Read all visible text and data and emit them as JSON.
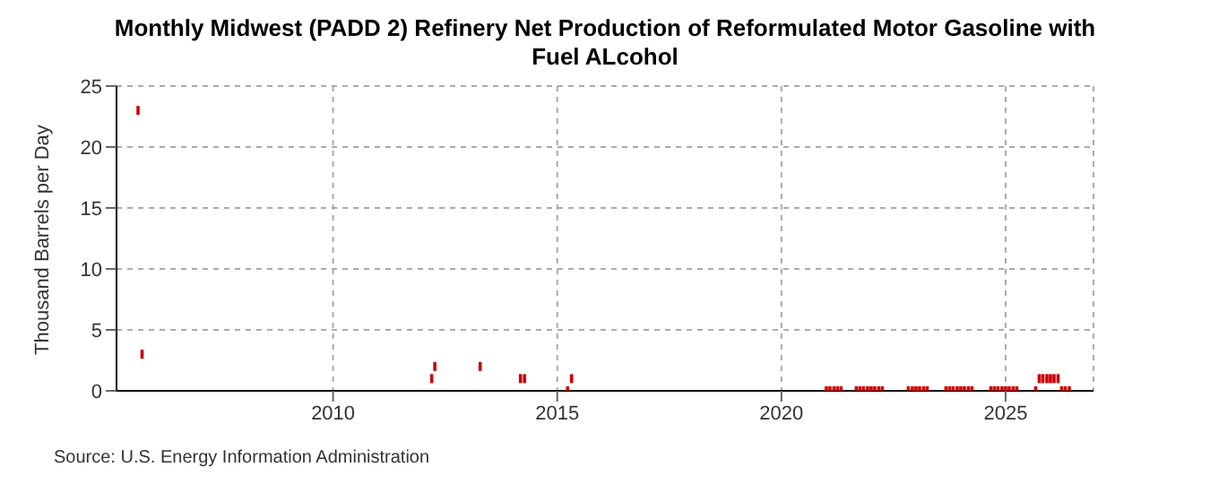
{
  "chart_data": {
    "type": "scatter",
    "title": "Monthly Midwest (PADD 2) Refinery Net Production of Reformulated Motor Gasoline with Fuel ALcohol",
    "ylabel": "Thousand Barrels per Day",
    "annotations": [
      "Source: U.S. Energy Information Administration"
    ],
    "x": [
      2005.65,
      2005.74,
      2012.2,
      2012.27,
      2013.28,
      2014.18,
      2014.27,
      2015.23,
      2015.32,
      2021.0,
      2021.08,
      2021.17,
      2021.25,
      2021.33,
      2021.67,
      2021.75,
      2021.83,
      2021.92,
      2022.0,
      2022.08,
      2022.17,
      2022.25,
      2022.83,
      2022.92,
      2023.0,
      2023.08,
      2023.17,
      2023.25,
      2023.67,
      2023.75,
      2023.83,
      2023.92,
      2024.0,
      2024.08,
      2024.17,
      2024.25,
      2024.67,
      2024.75,
      2024.83,
      2024.92,
      2025.0,
      2025.08,
      2025.17,
      2025.25,
      2025.67,
      2025.75,
      2025.83,
      2025.92,
      2026.0,
      2026.08,
      2026.17,
      2026.25,
      2026.33,
      2026.42
    ],
    "series": [
      {
        "color": "#cc0000",
        "values": [
          23,
          3,
          1,
          2,
          2,
          1,
          1,
          0,
          1,
          0,
          0,
          0,
          0,
          0,
          0,
          0,
          0,
          0,
          0,
          0,
          0,
          0,
          0,
          0,
          0,
          0,
          0,
          0,
          0,
          0,
          0,
          0,
          0,
          0,
          0,
          0,
          0,
          0,
          0,
          0,
          0,
          0,
          0,
          0,
          0,
          1,
          1,
          1,
          1,
          1,
          1,
          0,
          0,
          0
        ]
      }
    ],
    "marker": "square",
    "xlim": [
      2005.17,
      2026.96
    ],
    "xticks": [
      2010,
      2015,
      2020,
      2025
    ],
    "ylim": [
      0,
      25
    ],
    "yticks": [
      0,
      5,
      10,
      15,
      20,
      25
    ],
    "grid": true,
    "line_style": "dashed"
  }
}
